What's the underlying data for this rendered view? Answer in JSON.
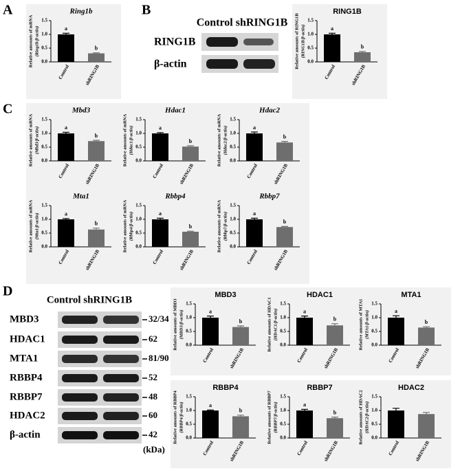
{
  "panel_labels": [
    "A",
    "B",
    "C",
    "D"
  ],
  "blot_b": {
    "header": "Control shRING1B",
    "rows": [
      "RING1B",
      "β-actin"
    ]
  },
  "blot_d": {
    "header": "Control shRING1B",
    "rows": [
      "MBD3",
      "HDAC1",
      "MTA1",
      "RBBP4",
      "RBBP7",
      "HDAC2",
      "β-actin"
    ],
    "sizes": [
      "32/34",
      "62",
      "81/90",
      "52",
      "48",
      "60",
      "42"
    ],
    "unit": "(kDa)"
  },
  "chart_data": [
    {
      "type": "bar",
      "title": "Ring1b",
      "italic_title": true,
      "ylabel": [
        "Relative amounts of mRNA",
        "(Ring1b/β-actin)"
      ],
      "categories": [
        "Control",
        "shRING1B"
      ],
      "values": [
        1.0,
        0.31
      ],
      "errors": [
        0.04,
        0.02
      ],
      "annotations": [
        "a",
        "b"
      ],
      "colors": [
        "#000000",
        "#6e6e6e"
      ],
      "ylim": [
        0,
        1.5
      ],
      "yticks": [
        {
          "value": 0,
          "label": "0.0"
        },
        {
          "value": 0.5,
          "label": "0.5"
        },
        {
          "value": 1,
          "label": "1.0"
        },
        {
          "value": 1.5,
          "label": "1.5"
        }
      ]
    },
    {
      "type": "bar",
      "title": "RING1B",
      "italic_title": false,
      "ylabel": [
        "Relative amounts of RING1B",
        "(RING1B/β-actin)"
      ],
      "categories": [
        "Control",
        "shRING1B"
      ],
      "values": [
        1.0,
        0.35
      ],
      "errors": [
        0.04,
        0.03
      ],
      "annotations": [
        "a",
        "b"
      ],
      "colors": [
        "#000000",
        "#6e6e6e"
      ],
      "ylim": [
        0,
        1.5
      ],
      "yticks": [
        {
          "value": 0,
          "label": "0.0"
        },
        {
          "value": 0.5,
          "label": "0.5"
        },
        {
          "value": 1,
          "label": "1.0"
        },
        {
          "value": 1.5,
          "label": "1.5"
        }
      ]
    },
    {
      "type": "bar",
      "title": "Mbd3",
      "italic_title": true,
      "ylabel": [
        "Relative amounts of mRNA",
        "(Mbd3/β-actin)"
      ],
      "categories": [
        "Control",
        "shRING1B"
      ],
      "values": [
        1.0,
        0.72
      ],
      "errors": [
        0.04,
        0.03
      ],
      "annotations": [
        "a",
        "b"
      ],
      "colors": [
        "#000000",
        "#6e6e6e"
      ],
      "ylim": [
        0,
        1.5
      ],
      "yticks": [
        {
          "value": 0,
          "label": "0.0"
        },
        {
          "value": 0.5,
          "label": "0.5"
        },
        {
          "value": 1,
          "label": "1.0"
        },
        {
          "value": 1.5,
          "label": "1.5"
        }
      ]
    },
    {
      "type": "bar",
      "title": "Hdac1",
      "italic_title": true,
      "ylabel": [
        "Relative amounts of mRNA",
        "(Hdac1/β-actin)"
      ],
      "categories": [
        "Control",
        "shRING1B"
      ],
      "values": [
        1.0,
        0.52
      ],
      "errors": [
        0.03,
        0.03
      ],
      "annotations": [
        "a",
        "b"
      ],
      "colors": [
        "#000000",
        "#6e6e6e"
      ],
      "ylim": [
        0,
        1.5
      ],
      "yticks": [
        {
          "value": 0,
          "label": "0.0"
        },
        {
          "value": 0.5,
          "label": "0.5"
        },
        {
          "value": 1,
          "label": "1.0"
        },
        {
          "value": 1.5,
          "label": "1.5"
        }
      ]
    },
    {
      "type": "bar",
      "title": "Hdac2",
      "italic_title": true,
      "ylabel": [
        "Relative amounts of mRNA",
        "(Hdac2/β-actin)"
      ],
      "categories": [
        "Control",
        "shRING1B"
      ],
      "values": [
        1.0,
        0.67
      ],
      "errors": [
        0.05,
        0.04
      ],
      "annotations": [
        "a",
        "b"
      ],
      "colors": [
        "#000000",
        "#6e6e6e"
      ],
      "ylim": [
        0,
        1.5
      ],
      "yticks": [
        {
          "value": 0,
          "label": "0.0"
        },
        {
          "value": 0.5,
          "label": "0.5"
        },
        {
          "value": 1,
          "label": "1.0"
        },
        {
          "value": 1.5,
          "label": "1.5"
        }
      ]
    },
    {
      "type": "bar",
      "title": "Mta1",
      "italic_title": true,
      "ylabel": [
        "Relative amounts of mRNA",
        "(Mta1/β-actin)"
      ],
      "categories": [
        "Control",
        "shRING1B"
      ],
      "values": [
        1.0,
        0.63
      ],
      "errors": [
        0.03,
        0.05
      ],
      "annotations": [
        "a",
        "b"
      ],
      "colors": [
        "#000000",
        "#6e6e6e"
      ],
      "ylim": [
        0,
        1.5
      ],
      "yticks": [
        {
          "value": 0,
          "label": "0.0"
        },
        {
          "value": 0.5,
          "label": "0.5"
        },
        {
          "value": 1,
          "label": "1.0"
        },
        {
          "value": 1.5,
          "label": "1.5"
        }
      ]
    },
    {
      "type": "bar",
      "title": "Rbbp4",
      "italic_title": true,
      "ylabel": [
        "Relative amounts of mRNA",
        "(Rbbp4/β-actin)"
      ],
      "categories": [
        "Control",
        "shRING1B"
      ],
      "values": [
        1.0,
        0.55
      ],
      "errors": [
        0.04,
        0.02
      ],
      "annotations": [
        "a",
        "b"
      ],
      "colors": [
        "#000000",
        "#6e6e6e"
      ],
      "ylim": [
        0,
        1.5
      ],
      "yticks": [
        {
          "value": 0,
          "label": "0.0"
        },
        {
          "value": 0.5,
          "label": "0.5"
        },
        {
          "value": 1,
          "label": "1.0"
        },
        {
          "value": 1.5,
          "label": "1.5"
        }
      ]
    },
    {
      "type": "bar",
      "title": "Rbbp7",
      "italic_title": true,
      "ylabel": [
        "Relative amounts of mRNA",
        "(Rbbp7/β-actin)"
      ],
      "categories": [
        "Control",
        "shRING1B"
      ],
      "values": [
        1.0,
        0.72
      ],
      "errors": [
        0.04,
        0.02
      ],
      "annotations": [
        "a",
        "b"
      ],
      "colors": [
        "#000000",
        "#6e6e6e"
      ],
      "ylim": [
        0,
        1.5
      ],
      "yticks": [
        {
          "value": 0,
          "label": "0.0"
        },
        {
          "value": 0.5,
          "label": "0.5"
        },
        {
          "value": 1,
          "label": "1.0"
        },
        {
          "value": 1.5,
          "label": "1.5"
        }
      ]
    },
    {
      "type": "bar",
      "title": "MBD3",
      "italic_title": false,
      "ylabel": [
        "Relative amounts of MBD3",
        "(MBD3/β-actin)"
      ],
      "categories": [
        "Control",
        "shRING1B"
      ],
      "values": [
        1.0,
        0.66
      ],
      "errors": [
        0.06,
        0.04
      ],
      "annotations": [
        "a",
        "b"
      ],
      "colors": [
        "#000000",
        "#6e6e6e"
      ],
      "ylim": [
        0,
        1.5
      ],
      "yticks": [
        {
          "value": 0,
          "label": "0.0"
        },
        {
          "value": 0.5,
          "label": "0.5"
        },
        {
          "value": 1,
          "label": "1.0"
        },
        {
          "value": 1.5,
          "label": "1.5"
        }
      ]
    },
    {
      "type": "bar",
      "title": "HDAC1",
      "italic_title": false,
      "ylabel": [
        "Relative amounts of HDAC1",
        "(HDAC1/β-actin)"
      ],
      "categories": [
        "Control",
        "shRING1B"
      ],
      "values": [
        1.0,
        0.72
      ],
      "errors": [
        0.06,
        0.06
      ],
      "annotations": [
        "a",
        "b"
      ],
      "colors": [
        "#000000",
        "#6e6e6e"
      ],
      "ylim": [
        0,
        1.5
      ],
      "yticks": [
        {
          "value": 0,
          "label": "0.0"
        },
        {
          "value": 0.5,
          "label": "0.5"
        },
        {
          "value": 1,
          "label": "1.0"
        },
        {
          "value": 1.5,
          "label": "1.5"
        }
      ]
    },
    {
      "type": "bar",
      "title": "MTA1",
      "italic_title": false,
      "ylabel": [
        "Relative amounts of MTA1",
        "(MTA1/β-actin)"
      ],
      "categories": [
        "Control",
        "shRING1B"
      ],
      "values": [
        1.0,
        0.64
      ],
      "errors": [
        0.07,
        0.03
      ],
      "annotations": [
        "a",
        "b"
      ],
      "colors": [
        "#000000",
        "#6e6e6e"
      ],
      "ylim": [
        0,
        1.5
      ],
      "yticks": [
        {
          "value": 0,
          "label": "0.0"
        },
        {
          "value": 0.5,
          "label": "0.5"
        },
        {
          "value": 1,
          "label": "1.0"
        },
        {
          "value": 1.5,
          "label": "1.5"
        }
      ]
    },
    {
      "type": "bar",
      "title": "RBBP4",
      "italic_title": false,
      "ylabel": [
        "Relative amounts of RBBP4",
        "(RBBP4/β-actin)"
      ],
      "categories": [
        "Control",
        "shRING1B"
      ],
      "values": [
        1.0,
        0.79
      ],
      "errors": [
        0.02,
        0.04
      ],
      "annotations": [
        "a",
        "b"
      ],
      "colors": [
        "#000000",
        "#6e6e6e"
      ],
      "ylim": [
        0,
        1.5
      ],
      "yticks": [
        {
          "value": 0,
          "label": "0.0"
        },
        {
          "value": 0.5,
          "label": "0.5"
        },
        {
          "value": 1,
          "label": "1.0"
        },
        {
          "value": 1.5,
          "label": "1.5"
        }
      ]
    },
    {
      "type": "bar",
      "title": "RBBP7",
      "italic_title": false,
      "ylabel": [
        "Relative amounts of RBBP7",
        "(RBBP7/β-actin)"
      ],
      "categories": [
        "Control",
        "shRING1B"
      ],
      "values": [
        1.0,
        0.72
      ],
      "errors": [
        0.04,
        0.04
      ],
      "annotations": [
        "a",
        "b"
      ],
      "colors": [
        "#000000",
        "#6e6e6e"
      ],
      "ylim": [
        0,
        1.5
      ],
      "yticks": [
        {
          "value": 0,
          "label": "0.0"
        },
        {
          "value": 0.5,
          "label": "0.5"
        },
        {
          "value": 1,
          "label": "1.0"
        },
        {
          "value": 1.5,
          "label": "1.5"
        }
      ]
    },
    {
      "type": "bar",
      "title": "HDAC2",
      "italic_title": false,
      "ylabel": [
        "Relative amounts of HDAC2",
        "(HDAC2/β-actin)"
      ],
      "categories": [
        "Control",
        "shRING1B"
      ],
      "values": [
        1.0,
        0.87
      ],
      "errors": [
        0.08,
        0.06
      ],
      "colors": [
        "#000000",
        "#6e6e6e"
      ],
      "ylim": [
        0,
        1.5
      ],
      "yticks": [
        {
          "value": 0,
          "label": "0.0"
        },
        {
          "value": 0.5,
          "label": "0.5"
        },
        {
          "value": 1,
          "label": "1.0"
        },
        {
          "value": 1.5,
          "label": "1.5"
        }
      ]
    }
  ]
}
